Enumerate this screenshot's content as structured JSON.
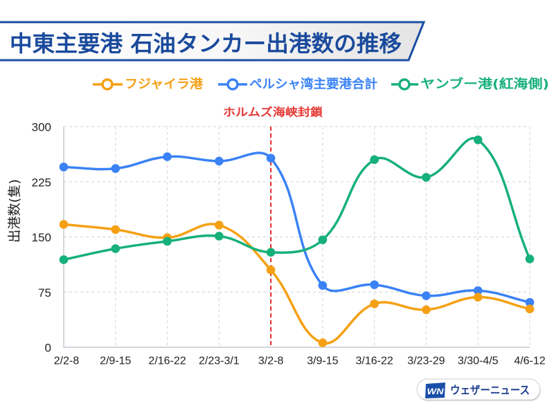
{
  "chart_data": {
    "type": "line",
    "title": "中東主要港 石油タンカー出港数の推移",
    "xlabel": "",
    "ylabel": "出港数(隻)",
    "categories": [
      "2/2-8",
      "2/9-15",
      "2/16-22",
      "2/23-3/1",
      "3/2-8",
      "3/9-15",
      "3/16-22",
      "3/23-29",
      "3/30-4/5",
      "4/6-12"
    ],
    "ylim": [
      0,
      300
    ],
    "yticks": [
      0,
      75,
      150,
      225,
      300
    ],
    "grid": true,
    "legend_position": "top",
    "series": [
      {
        "name": "フジャイラ港",
        "color": "#f5a014",
        "values": [
          167,
          160,
          149,
          166,
          105,
          6,
          59,
          51,
          68,
          52
        ]
      },
      {
        "name": "ペルシャ湾主要港合計",
        "color": "#3a82f6",
        "values": [
          245,
          243,
          259,
          253,
          257,
          84,
          85,
          70,
          77,
          61
        ]
      },
      {
        "name": "ヤンブー港(紅海側)",
        "color": "#16b07a",
        "values": [
          119,
          134,
          144,
          151,
          129,
          146,
          255,
          231,
          282,
          120
        ]
      }
    ],
    "annotations": [
      {
        "type": "vertical-line",
        "x": "3/2-8",
        "label": "ホルムズ海峡封鎖",
        "color": "#e53935"
      }
    ]
  },
  "theme": {
    "title_color": "#1a4a9c",
    "title_border": "#1b4ea2",
    "axis_color": "#d6d6de",
    "grid_color": "#dadada",
    "text_color": "#222222"
  },
  "branding": {
    "logo_mark": "WN",
    "name": "ウェザーニュース",
    "color": "#1e3f8e",
    "mark_color": "#1a4fa8"
  }
}
